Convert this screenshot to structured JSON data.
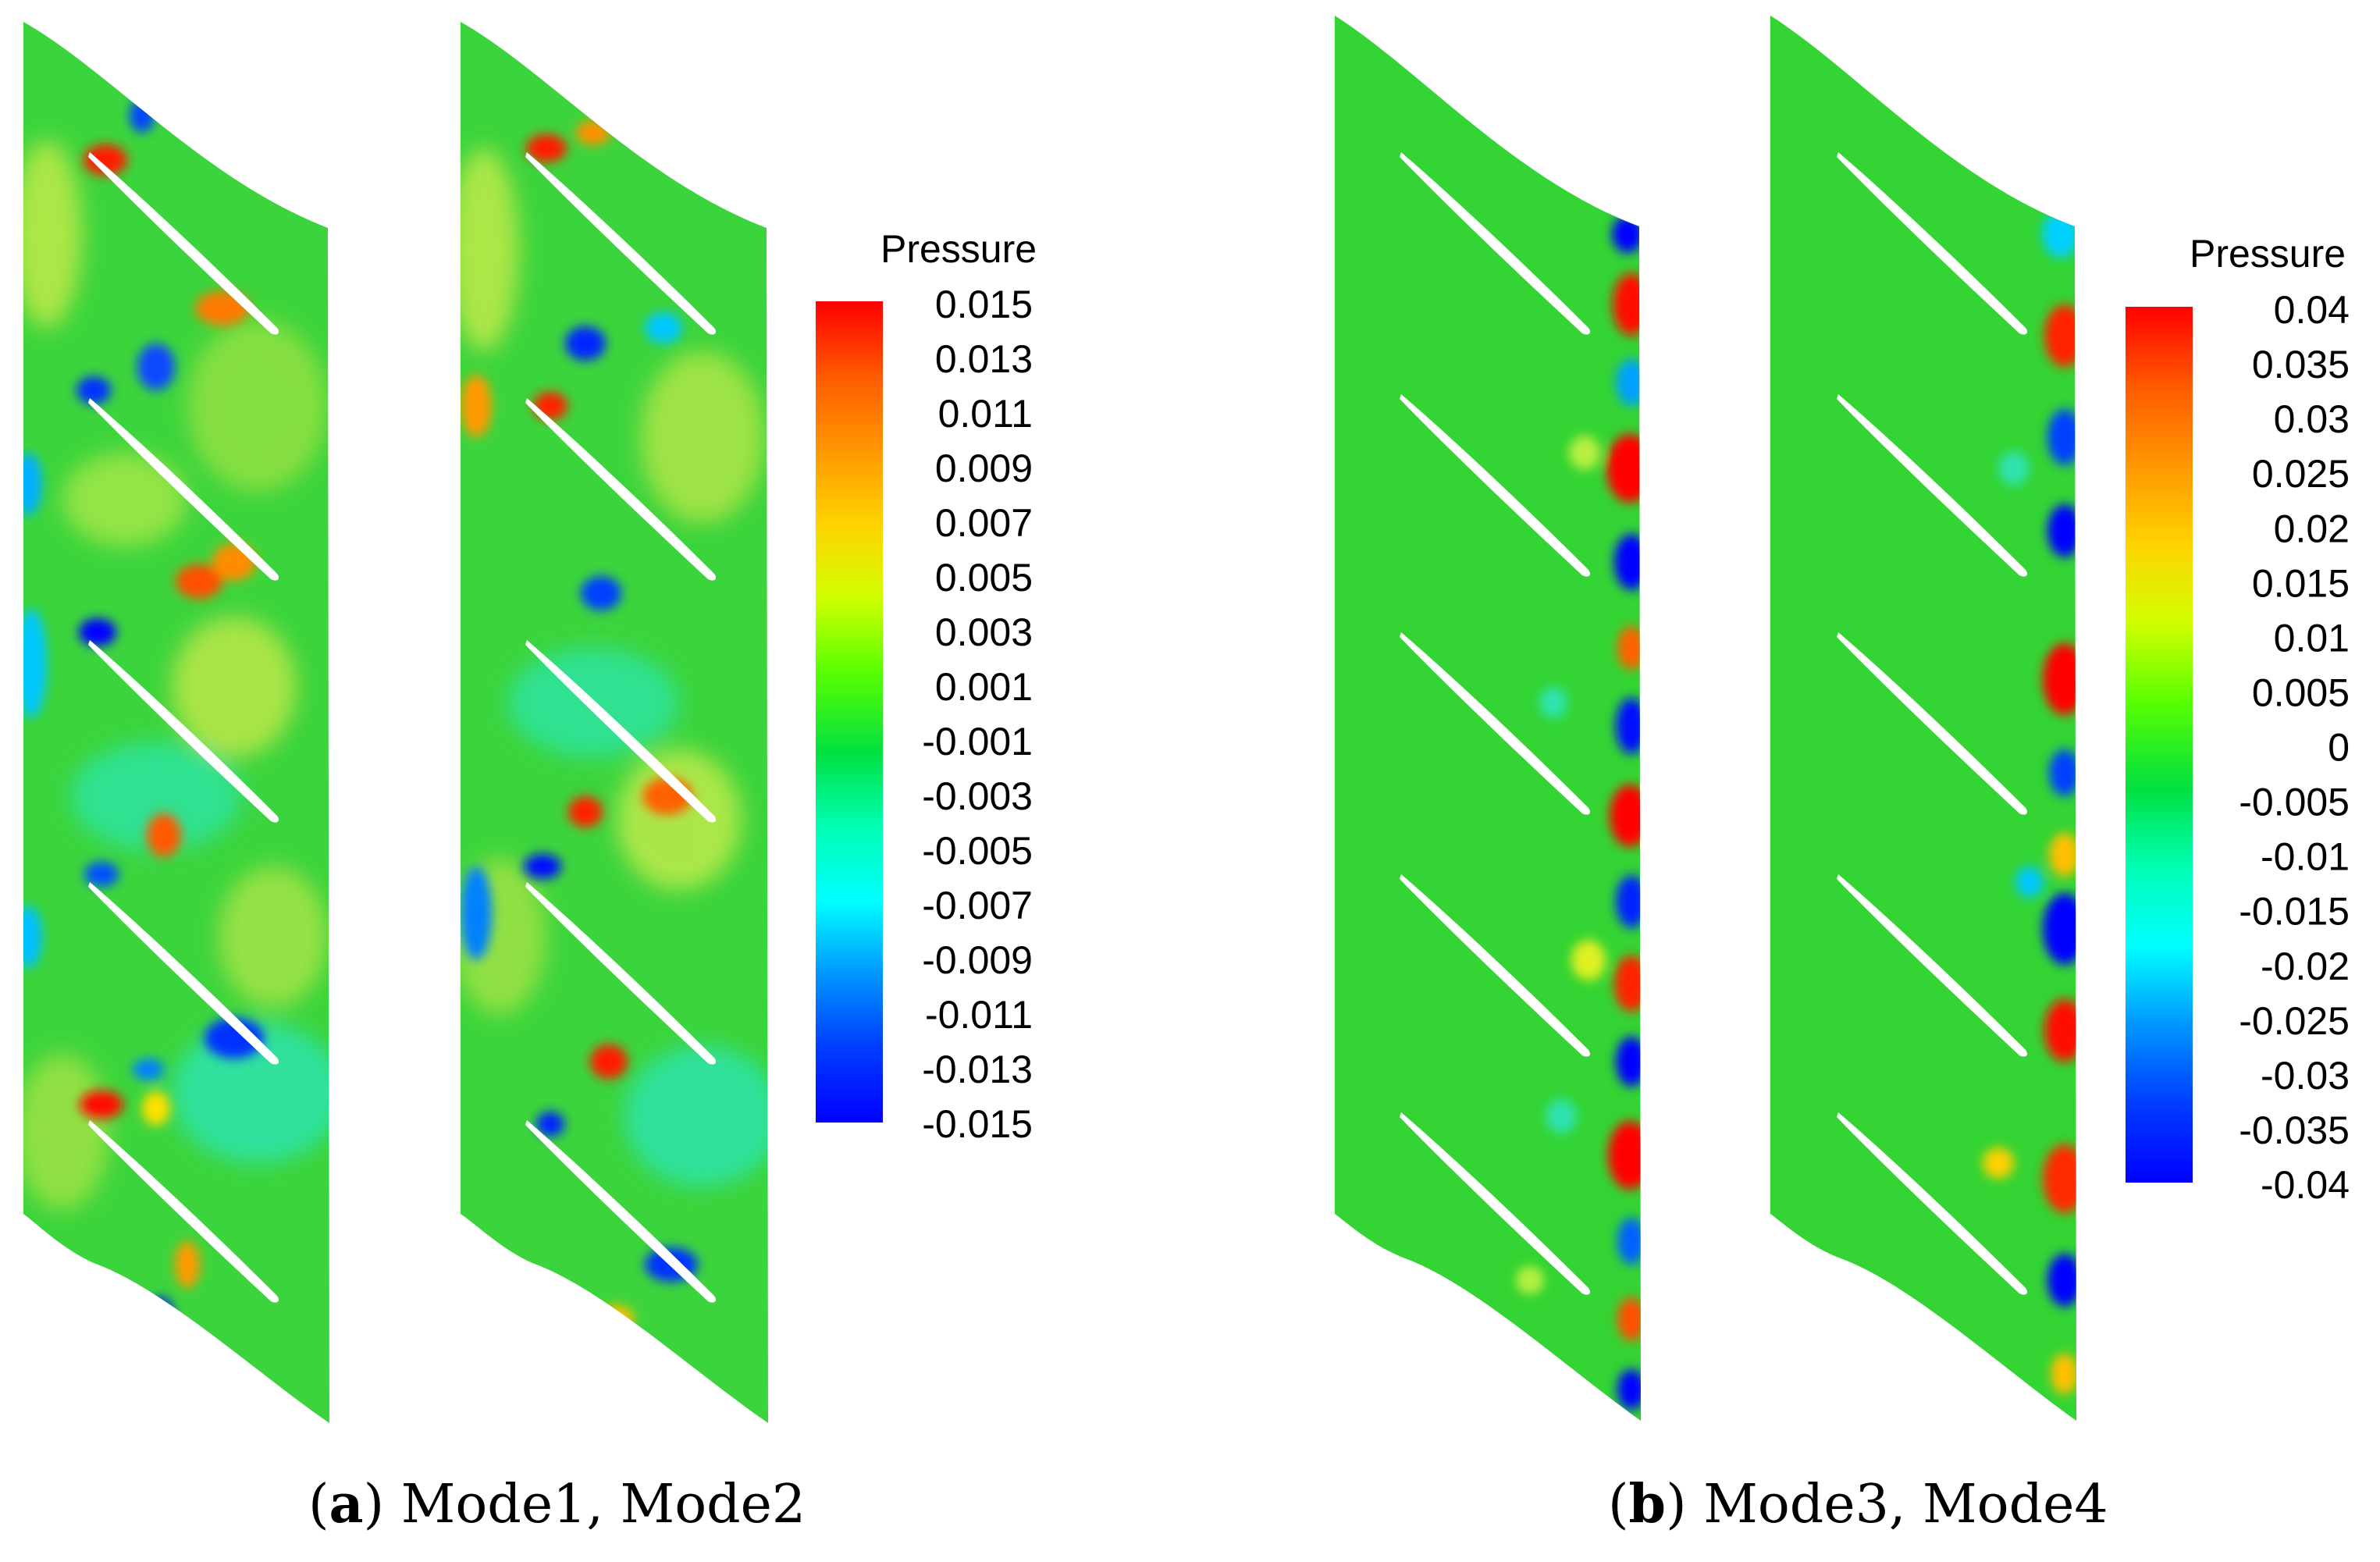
{
  "panels": [
    {
      "letter": "a",
      "caption_text": " Mode1, Mode2",
      "colorbar": {
        "title": "Pressure",
        "ticks": [
          "0.015",
          "0.013",
          "0.011",
          "0.009",
          "0.007",
          "0.005",
          "0.003",
          "0.001",
          "-0.001",
          "-0.003",
          "-0.005",
          "-0.007",
          "-0.009",
          "-0.011",
          "-0.013",
          "-0.015"
        ]
      }
    },
    {
      "letter": "b",
      "caption_text": " Mode3, Mode4",
      "colorbar": {
        "title": "Pressure",
        "ticks": [
          "0.04",
          "0.035",
          "0.03",
          "0.025",
          "0.02",
          "0.015",
          "0.01",
          "0.005",
          "0",
          "-0.005",
          "-0.01",
          "-0.015",
          "-0.02",
          "-0.025",
          "-0.03",
          "-0.035",
          "-0.04"
        ]
      }
    }
  ],
  "colormap": [
    "#ff0000",
    "#ff5a00",
    "#ff9600",
    "#ffd200",
    "#d2ff00",
    "#5aff00",
    "#00ff3c",
    "#00ffb4",
    "#00ffff",
    "#0096ff",
    "#003cff",
    "#0000ff"
  ],
  "colors": {
    "background_field": "#34d534"
  }
}
